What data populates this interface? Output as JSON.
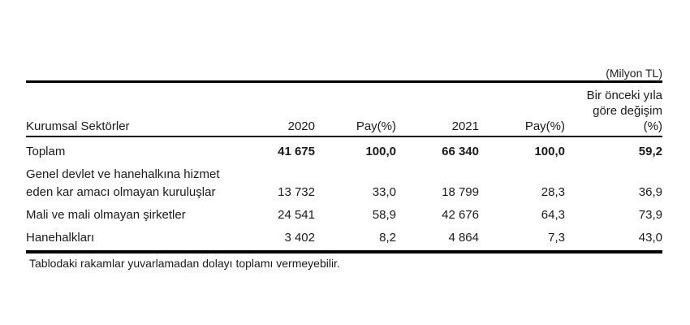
{
  "unit_label": "(Milyon TL)",
  "table": {
    "header": {
      "sector": "Kurumsal Sektörler",
      "year1": "2020",
      "share1": "Pay(%)",
      "year2": "2021",
      "share2": "Pay(%)",
      "change_line1": "Bir önceki yıla",
      "change_line2": "göre değişim",
      "change_line3": "(%)"
    },
    "rows": [
      {
        "label_line1": "Toplam",
        "v2020": "41 675",
        "pay2020": "100,0",
        "v2021": "66 340",
        "pay2021": "100,0",
        "change": "59,2",
        "emphasis": "bold"
      },
      {
        "label_line1": "Genel devlet ve hanehalkına hizmet",
        "label_line2": "eden kar amacı olmayan kuruluşlar",
        "v2020": "13 732",
        "pay2020": "33,0",
        "v2021": "18 799",
        "pay2021": "28,3",
        "change": "36,9"
      },
      {
        "label_line1": "Mali ve mali olmayan şirketler",
        "v2020": "24 541",
        "pay2020": "58,9",
        "v2021": "42 676",
        "pay2021": "64,3",
        "change": "73,9"
      },
      {
        "label_line1": "Hanehalkları",
        "v2020": "3 402",
        "pay2020": "8,2",
        "v2021": "4 864",
        "pay2021": "7,3",
        "change": "43,0"
      }
    ]
  },
  "footnote": "Tablodaki rakamlar yuvarlamadan dolayı toplamı vermeyebilir.",
  "colors": {
    "text": "#1a1a1a",
    "rule": "#000000",
    "background": "#ffffff"
  }
}
